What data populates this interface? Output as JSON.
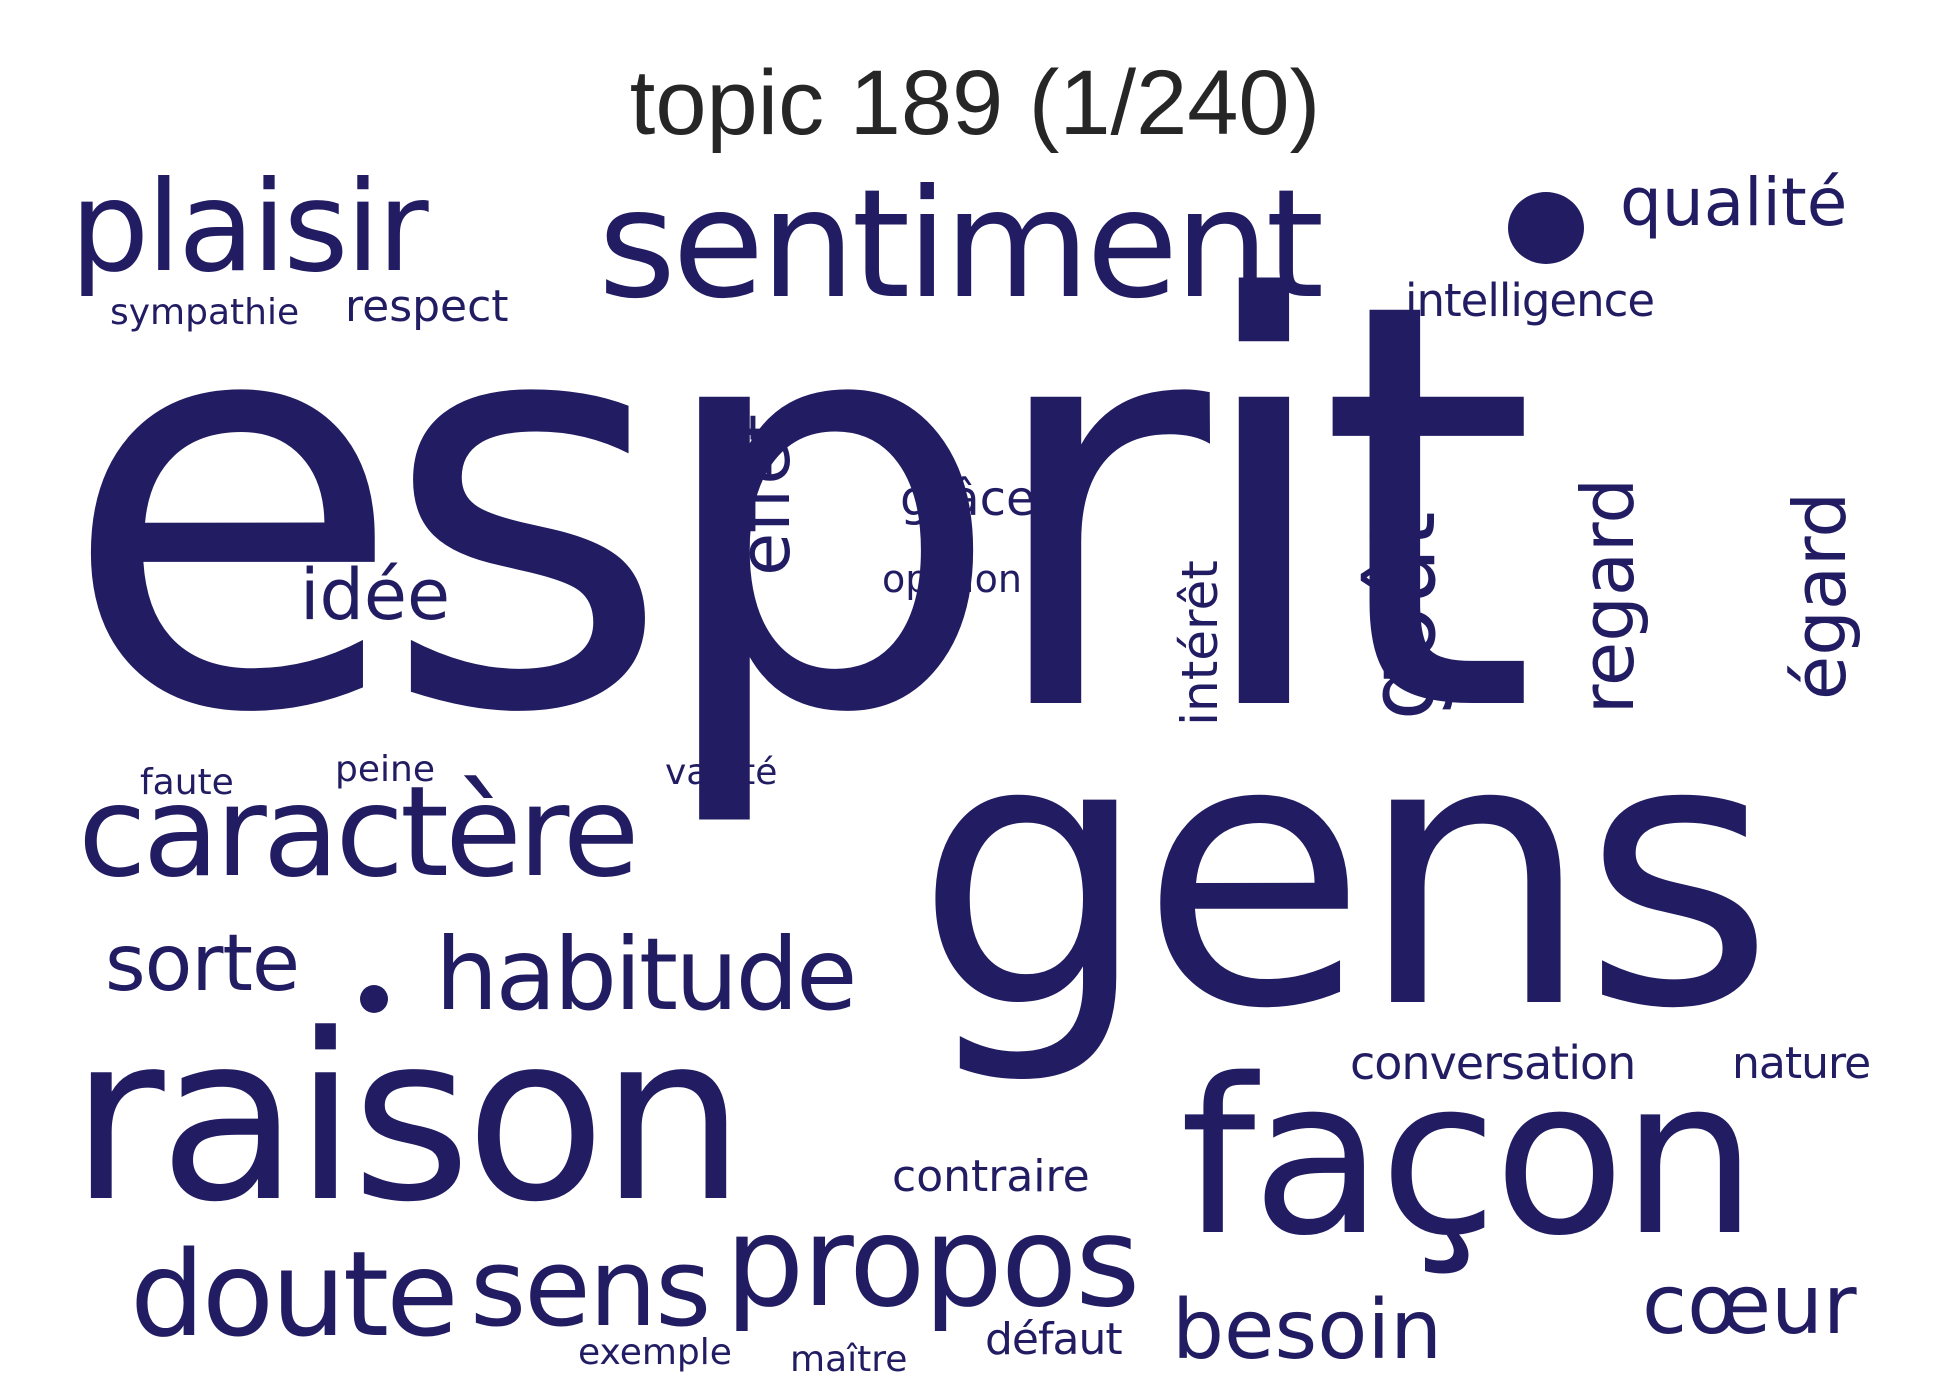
{
  "title": "topic 189 (1/240)",
  "word_color": "#221d63",
  "title_color": "#262626",
  "words": {
    "esprit": "esprit",
    "gens": "gens",
    "raison": "raison",
    "facon": "façon",
    "sentiment": "sentiment",
    "plaisir": "plaisir",
    "caractere": "caractère",
    "propos": "propos",
    "doute": "doute",
    "sens": "sens",
    "habitude": "habitude",
    "gout": "goût",
    "besoin": "besoin",
    "coeur": "cœur",
    "regard": "regard",
    "egard": "égard",
    "sorte": "sorte",
    "qualite": "qualité",
    "effet": "effet",
    "idee": "idée",
    "intelligence": "intelligence",
    "conversation": "conversation",
    "nature": "nature",
    "respect": "respect",
    "sympathie": "sympathie",
    "grace": "grâce",
    "opinion": "opinion",
    "interet": "intérêt",
    "contraire": "contraire",
    "defaut": "défaut",
    "exemple": "exemple",
    "maitre": "maître",
    "faute": "faute",
    "peine": "peine",
    "vanite": "vanité"
  }
}
